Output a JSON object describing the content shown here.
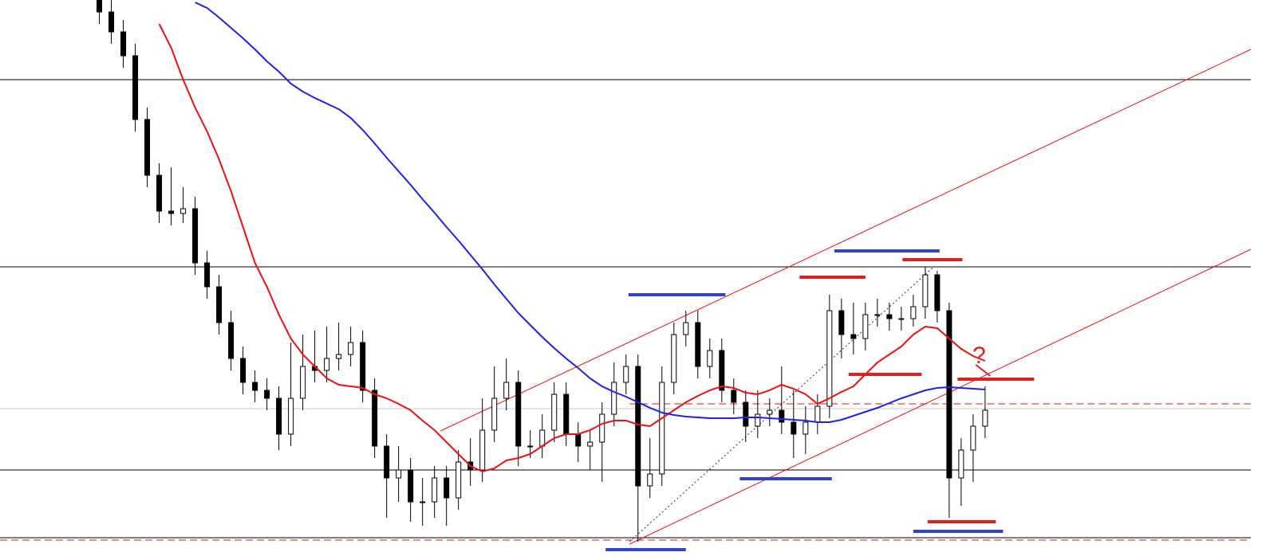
{
  "chart_data": {
    "type": "candlestick",
    "xlim": [
      -8.3,
      96.2
    ],
    "ylim": [
      0,
      70
    ],
    "open": [
      70,
      68.5,
      66,
      63,
      55,
      48,
      43.5,
      43.2,
      43.8,
      37,
      34,
      29.5,
      25,
      22,
      21,
      20,
      15.5,
      20,
      24,
      23.5,
      25,
      25.5,
      27,
      21,
      14,
      10,
      11,
      7,
      7,
      10,
      7.5,
      12,
      11,
      16,
      20,
      22,
      14,
      14,
      16,
      20.5,
      15.5,
      14,
      14.5,
      18,
      22,
      24,
      9,
      10.5,
      22,
      28,
      29.5,
      24,
      26,
      21,
      19.5,
      16.5,
      18,
      18.5,
      17,
      15.5,
      17,
      19,
      31,
      28,
      27.5,
      30.5,
      30.5,
      30,
      30,
      31.5,
      35.5,
      31,
      10,
      13.5,
      16.5
    ],
    "high": [
      71.5,
      70,
      67.5,
      64.5,
      56.5,
      49.5,
      49,
      46.5,
      45.3,
      38.5,
      35.5,
      31,
      26.5,
      23.5,
      22.5,
      21.5,
      27,
      28,
      28.5,
      29,
      29.5,
      29,
      28.5,
      22.5,
      15.5,
      14,
      12.5,
      10,
      11.5,
      11.5,
      13.5,
      15,
      20,
      24,
      25,
      23.5,
      16,
      18,
      22,
      22,
      17,
      16,
      19.5,
      24.5,
      25.5,
      25.5,
      15,
      24,
      29.5,
      31,
      31,
      27.5,
      27.5,
      22.5,
      21,
      21,
      20,
      24,
      21,
      19,
      20.5,
      33,
      32.5,
      32,
      32,
      32.5,
      32,
      31.5,
      33,
      36.5,
      36,
      32,
      15,
      18,
      21.5
    ],
    "low": [
      67,
      64.5,
      61.5,
      53.5,
      46.5,
      42,
      41.7,
      42,
      35.5,
      32.5,
      28,
      23.5,
      20.5,
      19.5,
      18.5,
      13.5,
      14,
      18.5,
      22,
      22,
      23.5,
      24,
      19.5,
      12.5,
      5,
      7,
      4.5,
      4,
      5,
      4,
      6,
      9,
      9.5,
      14.5,
      18.5,
      11.5,
      12.5,
      12.5,
      14.5,
      14,
      12,
      11,
      9.5,
      16.5,
      20.5,
      2,
      7.5,
      9,
      20.5,
      26.5,
      22.5,
      22.5,
      19.5,
      18,
      14.5,
      15,
      16.5,
      15.5,
      12.5,
      13,
      15.5,
      17.5,
      25,
      25.5,
      26,
      29,
      28.5,
      28.5,
      29,
      30,
      29.5,
      5,
      6.5,
      9.5,
      15
    ],
    "close": [
      68.5,
      66,
      63,
      55,
      48,
      43.5,
      43.2,
      43.8,
      37,
      34,
      29.5,
      25,
      22,
      21,
      20,
      15.5,
      20,
      24,
      23.5,
      25,
      25.5,
      27,
      21,
      14,
      10,
      11,
      7,
      7,
      10,
      7.5,
      12,
      11,
      16,
      20,
      22,
      14,
      14,
      16,
      20.5,
      15.5,
      14,
      14.5,
      18,
      22,
      24,
      9,
      10.5,
      22,
      28,
      29.5,
      24,
      26,
      21,
      19.5,
      16.5,
      18,
      18.5,
      17,
      15.5,
      17,
      19,
      31,
      28,
      27.5,
      30.5,
      30.5,
      30,
      30,
      31.5,
      35.5,
      31,
      10,
      13.5,
      16.5,
      18.5
    ],
    "series": [
      {
        "color": "#ee1111",
        "values": [
          null,
          null,
          null,
          null,
          null,
          67,
          64,
          60,
          56.5,
          53.5,
          50,
          46,
          41.5,
          37,
          34,
          30.5,
          27.5,
          25.5,
          24,
          22.5,
          21.7,
          21.5,
          21.3,
          20.5,
          20,
          19.3,
          18.5,
          17.2,
          16,
          14.5,
          13,
          11.5,
          10.8,
          11.2,
          12.2,
          12.5,
          13,
          14,
          15,
          15.5,
          15.5,
          16,
          16.8,
          17.2,
          17.2,
          16.7,
          16.5,
          17.5,
          18.5,
          19.5,
          20.3,
          21,
          21.5,
          21.3,
          20.7,
          20.5,
          21,
          21.7,
          21.2,
          20.5,
          19.3,
          20,
          20.8,
          21.5,
          23,
          24.5,
          25.5,
          26.5,
          28,
          29,
          28.8,
          27.5,
          26.2,
          25.3,
          24.7
        ]
      },
      {
        "color": "#1a22ee",
        "values": [
          null,
          null,
          null,
          null,
          null,
          null,
          null,
          null,
          69.7,
          69,
          67.8,
          66.5,
          65.2,
          63.8,
          62.3,
          61,
          59.5,
          58.5,
          57.7,
          57,
          56.3,
          55.2,
          53.7,
          52,
          50.2,
          48.5,
          46.8,
          45,
          43.3,
          41.5,
          39.8,
          38,
          36.2,
          34.3,
          32.5,
          30.7,
          29.2,
          27.7,
          26.3,
          25,
          23.8,
          22.5,
          21.5,
          20.8,
          20.2,
          19.5,
          18.8,
          18.2,
          17.9,
          17.7,
          17.6,
          17.5,
          17.5,
          17.5,
          17.6,
          17.6,
          17.5,
          17.4,
          17.3,
          17.2,
          17,
          17,
          17.3,
          17.8,
          18.3,
          18.8,
          19.4,
          20,
          20.5,
          21,
          21.3,
          21.4,
          21.3,
          21.2,
          21.1
        ]
      }
    ],
    "levels": [
      {
        "y": 60,
        "color": "#000000"
      },
      {
        "y": 36.5,
        "color": "#000000"
      },
      {
        "y": 11,
        "color": "#000000"
      },
      {
        "y": 2.5,
        "color": "#000000"
      },
      {
        "y": 18.7,
        "color": "#c8c8c8"
      }
    ],
    "trendlines": [
      {
        "x": [
          28.5,
          96.2
        ],
        "y": [
          15.9,
          63.8
        ],
        "color": "#ee1111",
        "style": "solid"
      },
      {
        "x": [
          44.3,
          96.2
        ],
        "y": [
          1.7,
          38.7
        ],
        "color": "#ee1111",
        "style": "solid"
      },
      {
        "x": [
          44.3,
          69.7
        ],
        "y": [
          2,
          36.5
        ],
        "color": "#333333",
        "style": "dotted"
      },
      {
        "x": [
          44.3,
          96.2
        ],
        "y": [
          19.3,
          19.3
        ],
        "color": "#ee1111",
        "style": "dashed"
      },
      {
        "x": [
          -8.3,
          96.2
        ],
        "y": [
          2.2,
          2.2
        ],
        "color": "#ee1111",
        "style": "dashed"
      }
    ],
    "segments": [
      {
        "x": [
          44.2,
          52.3
        ],
        "y": [
          33,
          33
        ],
        "color": "#3344cc"
      },
      {
        "x": [
          61.4,
          70.2
        ],
        "y": [
          38.5,
          38.5
        ],
        "color": "#3344cc"
      },
      {
        "x": [
          53.5,
          61.2
        ],
        "y": [
          9.9,
          9.9
        ],
        "color": "#3344cc"
      },
      {
        "x": [
          42.3,
          49
        ],
        "y": [
          1,
          1
        ],
        "color": "#3344cc"
      },
      {
        "x": [
          68,
          75.5
        ],
        "y": [
          3.3,
          3.3
        ],
        "color": "#3344cc"
      },
      {
        "x": [
          58.5,
          64
        ],
        "y": [
          35.2,
          35.2
        ],
        "color": "#e02020"
      },
      {
        "x": [
          67.1,
          72.1
        ],
        "y": [
          37.4,
          37.4
        ],
        "color": "#e02020"
      },
      {
        "x": [
          62.6,
          68.7
        ],
        "y": [
          23,
          23
        ],
        "color": "#e02020"
      },
      {
        "x": [
          71.7,
          78.1
        ],
        "y": [
          22.4,
          22.4
        ],
        "color": "#e02020"
      },
      {
        "x": [
          69.2,
          74.9
        ],
        "y": [
          4.5,
          4.5
        ],
        "color": "#e02020"
      }
    ],
    "annotations": [
      {
        "text": "?",
        "x": 73.5,
        "y": 25.2,
        "color": "#e02020"
      }
    ]
  }
}
